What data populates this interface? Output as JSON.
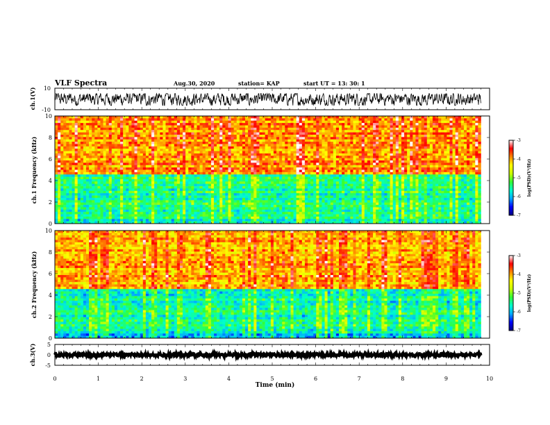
{
  "header": {
    "title": "VLF Spectra",
    "date": "Aug.30, 2020",
    "station": "station= KAP",
    "start": "start  UT  =  13: 30: 1"
  },
  "colors": {
    "line": "#000000",
    "colormap": [
      "#000080",
      "#0000ff",
      "#00aaff",
      "#00ffcc",
      "#33ff33",
      "#ccff00",
      "#ffff00",
      "#ff8800",
      "#ff0000",
      "#ffffff"
    ]
  },
  "chart_data": [
    {
      "type": "line",
      "panel": "ch1-waveform",
      "ylabel": "ch.1(V)",
      "ylim": [
        -10,
        10
      ],
      "yticks": [
        "10",
        "-10"
      ],
      "x_range": [
        0,
        9.8
      ],
      "amplitude_band": [
        -6,
        5
      ],
      "note_mean": 0
    },
    {
      "type": "heatmap",
      "panel": "ch1-spectrogram",
      "ylabel": "ch.1 Frequency (kHz)",
      "ylim": [
        0,
        10
      ],
      "yticks": [
        "0",
        "2",
        "4",
        "6",
        "8",
        "10"
      ],
      "x_range": [
        0,
        9.8
      ],
      "colorbar": {
        "label": "log(PSD)(V²/Hz)",
        "range": [
          -7,
          -3
        ],
        "ticks": [
          "-3",
          "-4",
          "-5",
          "-6",
          "-7"
        ]
      },
      "value_profile": {
        "low_band_kHz": [
          0,
          4.5
        ],
        "low_band_log_psd": -5.5,
        "high_band_kHz": [
          4.5,
          10
        ],
        "high_band_log_psd": -3.8
      }
    },
    {
      "type": "heatmap",
      "panel": "ch2-spectrogram",
      "ylabel": "ch.2 Frequency (kHz)",
      "ylim": [
        0,
        10
      ],
      "yticks": [
        "0",
        "2",
        "4",
        "6",
        "8",
        "10"
      ],
      "x_range": [
        0,
        9.8
      ],
      "colorbar": {
        "label": "log(PSD)(V²/Hz)",
        "range": [
          -7,
          -3
        ],
        "ticks": [
          "-3",
          "-4",
          "-5",
          "-6",
          "-7"
        ]
      },
      "value_profile": {
        "low_band_kHz": [
          0,
          4.5
        ],
        "low_band_log_psd": -5.6,
        "high_band_kHz": [
          4.5,
          10
        ],
        "high_band_log_psd": -3.9
      }
    },
    {
      "type": "line",
      "panel": "ch3-waveform",
      "ylabel": "ch.3(V)",
      "ylim": [
        -5,
        5
      ],
      "yticks": [
        "5",
        "0",
        "-5"
      ],
      "x_range": [
        0,
        9.8
      ],
      "amplitude_band": [
        -0.7,
        0.7
      ],
      "xlabel": "Time (min)",
      "xlim": [
        0,
        10
      ],
      "xticks": [
        "0",
        "1",
        "2",
        "3",
        "4",
        "5",
        "6",
        "7",
        "8",
        "9",
        "10"
      ]
    }
  ]
}
